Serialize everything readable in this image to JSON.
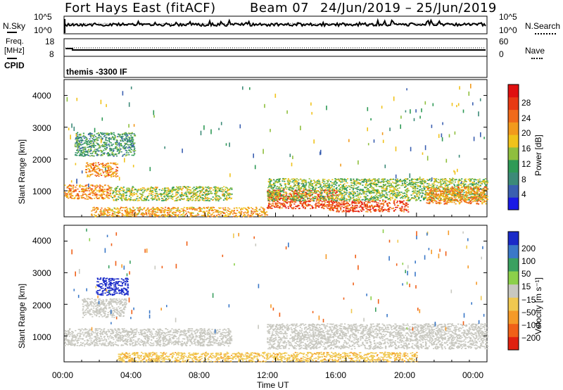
{
  "header": {
    "radar": "Fort Hays East (fitACF)",
    "beam": "Beam 07",
    "dates": "24/Jun/2019 – 25/Jun/2019"
  },
  "noise_panel": {
    "left_label": "N.Sky",
    "right_label": "N.Search",
    "left_ticks": [
      "10^5",
      "10^0"
    ],
    "right_ticks": [
      "10^5",
      "10^0"
    ]
  },
  "freq_panel": {
    "left_label_1": "Freq.",
    "left_label_2": "[MHz]",
    "left_ticks": [
      "18",
      "8"
    ],
    "right_label": "Nave",
    "right_ticks": [
      "60",
      "0"
    ]
  },
  "cpid": {
    "label": "CPID",
    "value": "themis -3300 IF"
  },
  "power_panel": {
    "ylabel": "Slant Range [km]",
    "yticks": [
      "4000",
      "3000",
      "2000",
      "1000"
    ],
    "colorbar_label": "Power [dB]",
    "colorbar_ticks": [
      "28",
      "24",
      "20",
      "16",
      "12",
      "8",
      "4"
    ],
    "colorbar_colors": [
      "#1a1ae6",
      "#3a5fb0",
      "#3c8a78",
      "#2f9a56",
      "#8fbf3e",
      "#f0c21a",
      "#f29a1c",
      "#f06a1a",
      "#e83a14",
      "#e01010"
    ]
  },
  "velocity_panel": {
    "ylabel": "Slant Range [km]",
    "yticks": [
      "4000",
      "3000",
      "2000",
      "1000"
    ],
    "colorbar_label": "Velocity [m s⁻¹]",
    "colorbar_ticks": [
      "200",
      "100",
      "50",
      "15",
      "−15",
      "−50",
      "−100",
      "−200"
    ],
    "colorbar_colors": [
      "#1a2ac8",
      "#3a78c8",
      "#3aa060",
      "#8cd04a",
      "#c8c8c0",
      "#f0c850",
      "#f59a28",
      "#f06018",
      "#e02010"
    ]
  },
  "x_axis": {
    "label": "Time UT",
    "ticks": [
      "00:00",
      "04:00",
      "08:00",
      "12:00",
      "16:00",
      "20:00",
      "00:00"
    ]
  },
  "chart_data": [
    {
      "type": "heatmap",
      "title": "Power [dB]",
      "xlabel": "Time UT",
      "ylabel": "Slant Range [km]",
      "xlim": [
        "00:00",
        "24:00"
      ],
      "ylim": [
        180,
        4500
      ],
      "colorbar": {
        "label": "Power [dB]",
        "range": [
          0,
          32
        ],
        "ticks": [
          4,
          8,
          12,
          16,
          20,
          24,
          28
        ]
      },
      "echo_regions": [
        {
          "t_start": 0.0,
          "t_end": 2.6,
          "r_min": 750,
          "r_max": 1200,
          "power": 22
        },
        {
          "t_start": 2.6,
          "t_end": 9.5,
          "r_min": 700,
          "r_max": 1150,
          "power": 15
        },
        {
          "t_start": 1.2,
          "t_end": 3.0,
          "r_min": 1450,
          "r_max": 1900,
          "power": 22
        },
        {
          "t_start": 0.6,
          "t_end": 4.0,
          "r_min": 2100,
          "r_max": 2850,
          "power": 10
        },
        {
          "t_start": 1.5,
          "t_end": 11.5,
          "r_min": 200,
          "r_max": 500,
          "power": 20
        },
        {
          "t_start": 11.5,
          "t_end": 15.5,
          "r_min": 450,
          "r_max": 1050,
          "power": 26
        },
        {
          "t_start": 15.0,
          "t_end": 19.5,
          "r_min": 350,
          "r_max": 700,
          "power": 26
        },
        {
          "t_start": 11.5,
          "t_end": 24.0,
          "r_min": 700,
          "r_max": 1400,
          "power": 14
        },
        {
          "t_start": 20.5,
          "t_end": 24.0,
          "r_min": 600,
          "r_max": 1150,
          "power": 22
        }
      ]
    },
    {
      "type": "heatmap",
      "title": "Velocity [m s⁻¹]",
      "xlabel": "Time UT",
      "ylabel": "Slant Range [km]",
      "xlim": [
        "00:00",
        "24:00"
      ],
      "ylim": [
        180,
        4500
      ],
      "colorbar": {
        "label": "Velocity [m s⁻¹]",
        "range": [
          -250,
          250
        ],
        "ticks": [
          200,
          100,
          50,
          15,
          -15,
          -50,
          -100,
          -200
        ]
      },
      "echo_regions": [
        {
          "t_start": 0.0,
          "t_end": 9.5,
          "r_min": 700,
          "r_max": 1250,
          "velocity": 0
        },
        {
          "t_start": 1.0,
          "t_end": 3.5,
          "r_min": 1600,
          "r_max": 2200,
          "velocity": 0
        },
        {
          "t_start": 1.8,
          "t_end": 3.6,
          "r_min": 2300,
          "r_max": 2850,
          "velocity": 220
        },
        {
          "t_start": 3.0,
          "t_end": 20.0,
          "r_min": 200,
          "r_max": 500,
          "velocity": -40
        },
        {
          "t_start": 11.5,
          "t_end": 24.0,
          "r_min": 600,
          "r_max": 1400,
          "velocity": 0
        }
      ]
    }
  ]
}
